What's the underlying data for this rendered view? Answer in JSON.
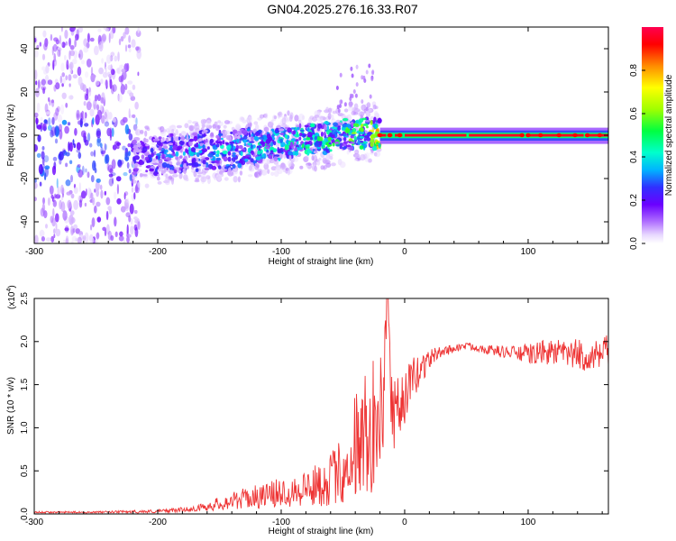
{
  "title": "GN04.2025.276.16.33.R07",
  "chart_data": [
    {
      "type": "heatmap",
      "name": "spectrogram",
      "xlabel": "Height of straight line (km)",
      "ylabel": "Frequency (Hz)",
      "xlim": [
        -300,
        165
      ],
      "ylim": [
        -50,
        50
      ],
      "xticks": [
        -300,
        -200,
        -100,
        0,
        100
      ],
      "xtick_labels": [
        "-300",
        "-200",
        "-100",
        "0",
        "100"
      ],
      "yticks": [
        -40,
        -20,
        0,
        20,
        40
      ],
      "ytick_labels": [
        "-40",
        "-20",
        "0",
        "20",
        "40"
      ],
      "colorbar": {
        "label": "Normalized spectral amplitude",
        "range": [
          0,
          1
        ],
        "ticks": [
          0.0,
          0.2,
          0.4,
          0.6,
          0.8
        ],
        "tick_labels": [
          "0.0",
          "0.2",
          "0.4",
          "0.6",
          "0.8"
        ],
        "colormap": [
          "#ffffff",
          "#e8d8ff",
          "#b070ff",
          "#6a00ff",
          "#3030ff",
          "#00b4ff",
          "#00ffcc",
          "#00ff40",
          "#a0ff00",
          "#ffff00",
          "#ff8c00",
          "#ff0000",
          "#ff0050"
        ]
      },
      "ridge": {
        "x": [
          -220,
          -200,
          -180,
          -160,
          -140,
          -120,
          -100,
          -80,
          -60,
          -40,
          -30,
          -20,
          0,
          20,
          50,
          100,
          165
        ],
        "y": [
          -10,
          -10,
          -8,
          -7,
          -7,
          -5,
          -4,
          -2,
          -1,
          1,
          1,
          0,
          0,
          0,
          0,
          0,
          0
        ],
        "amplitude": [
          0.3,
          0.38,
          0.42,
          0.45,
          0.45,
          0.48,
          0.5,
          0.55,
          0.58,
          0.6,
          0.62,
          0.85,
          0.95,
          0.98,
          0.98,
          0.97,
          0.97
        ]
      },
      "noise_region_x": [
        -300,
        -215
      ]
    },
    {
      "type": "line",
      "name": "snr",
      "xlabel": "Height of straight line (km)",
      "ylabel": "SNR (10 * v/v)",
      "scale_label": "(x10",
      "scale_exponent": "4",
      "scale_suffix": ")",
      "xlim": [
        -300,
        165
      ],
      "ylim": [
        0,
        2.5
      ],
      "xticks": [
        -300,
        -200,
        -100,
        0,
        100
      ],
      "xtick_labels": [
        "-300",
        "-200",
        "-100",
        "0",
        "100"
      ],
      "yticks": [
        0,
        0.5,
        1.0,
        1.5,
        2.0,
        2.5
      ],
      "ytick_labels": [
        "0.0",
        "0.5",
        "1.0",
        "1.5",
        "2.0",
        "2.5"
      ],
      "color": "#ee3333",
      "series": [
        {
          "name": "SNR",
          "x": [
            -300,
            -250,
            -200,
            -170,
            -150,
            -130,
            -110,
            -90,
            -70,
            -55,
            -45,
            -35,
            -25,
            -18,
            -14,
            -10,
            -5,
            0,
            5,
            10,
            15,
            20,
            25,
            30,
            40,
            50,
            60,
            70,
            80,
            90,
            100,
            110,
            120,
            130,
            140,
            150,
            160,
            165
          ],
          "y": [
            0.02,
            0.02,
            0.03,
            0.06,
            0.12,
            0.18,
            0.22,
            0.28,
            0.33,
            0.45,
            0.6,
            0.8,
            0.95,
            1.1,
            2.5,
            1.0,
            1.2,
            1.35,
            1.5,
            1.62,
            1.72,
            1.8,
            1.85,
            1.88,
            1.92,
            1.95,
            1.93,
            1.9,
            1.88,
            1.87,
            1.85,
            1.87,
            1.88,
            1.85,
            1.85,
            1.82,
            1.82,
            1.9
          ],
          "noise_amp": [
            0.01,
            0.01,
            0.02,
            0.03,
            0.08,
            0.12,
            0.15,
            0.2,
            0.25,
            0.35,
            0.5,
            0.6,
            0.7,
            0.6,
            0,
            0.5,
            0.4,
            0.3,
            0.3,
            0.22,
            0.18,
            0.12,
            0.08,
            0.06,
            0.05,
            0.04,
            0.05,
            0.06,
            0.07,
            0.08,
            0.12,
            0.14,
            0.15,
            0.16,
            0.18,
            0.18,
            0.2,
            0.2
          ]
        }
      ]
    }
  ]
}
